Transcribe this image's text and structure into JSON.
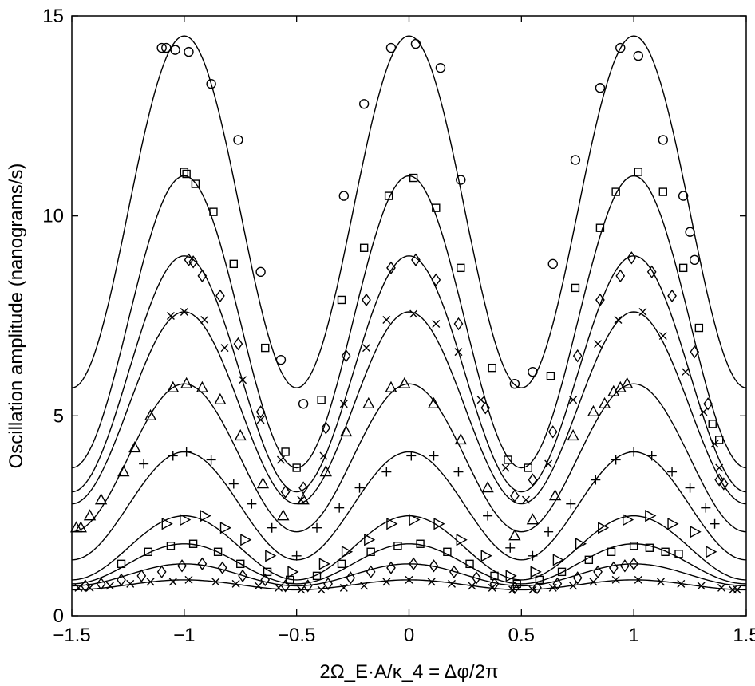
{
  "chart_data": {
    "type": "scatter",
    "xlabel": "2Ω_E·A/κ_4 = Δφ/2π",
    "ylabel": "Oscillation amplitude (nanograms/s)",
    "xlim": [
      -1.5,
      1.5
    ],
    "ylim": [
      0,
      15
    ],
    "xticks": [
      "-1.5",
      "-1",
      "-0.5",
      "0",
      "0.5",
      "1",
      "1.5"
    ],
    "yticks": [
      "0",
      "5",
      "10",
      "15"
    ],
    "grid": false,
    "legend": "none",
    "line_color": "#000000",
    "series": [
      {
        "marker": "circle",
        "curve": {
          "peak": 14.5,
          "trough": 5.7
        },
        "points": [
          [
            -1.1,
            14.2
          ],
          [
            -1.08,
            14.2
          ],
          [
            -1.04,
            14.15
          ],
          [
            -0.98,
            14.1
          ],
          [
            -0.88,
            13.3
          ],
          [
            -0.76,
            11.9
          ],
          [
            -0.66,
            8.6
          ],
          [
            -0.57,
            6.4
          ],
          [
            -0.47,
            5.3
          ],
          [
            -0.29,
            10.5
          ],
          [
            -0.2,
            12.8
          ],
          [
            -0.08,
            14.2
          ],
          [
            0.03,
            14.3
          ],
          [
            0.14,
            13.7
          ],
          [
            0.23,
            10.9
          ],
          [
            0.47,
            5.8
          ],
          [
            0.55,
            6.1
          ],
          [
            0.64,
            8.8
          ],
          [
            0.74,
            11.4
          ],
          [
            0.85,
            13.2
          ],
          [
            0.94,
            14.2
          ],
          [
            1.02,
            14.0
          ],
          [
            1.13,
            11.9
          ],
          [
            1.22,
            10.5
          ],
          [
            1.25,
            9.6
          ],
          [
            1.27,
            8.9
          ]
        ]
      },
      {
        "marker": "square",
        "curve": {
          "peak": 11.0,
          "trough": 3.7
        },
        "points": [
          [
            -1.0,
            11.1
          ],
          [
            -0.99,
            11.05
          ],
          [
            -0.95,
            10.8
          ],
          [
            -0.87,
            10.1
          ],
          [
            -0.78,
            8.8
          ],
          [
            -0.64,
            6.7
          ],
          [
            -0.55,
            4.1
          ],
          [
            -0.5,
            3.7
          ],
          [
            -0.39,
            5.4
          ],
          [
            -0.3,
            7.9
          ],
          [
            -0.2,
            9.2
          ],
          [
            -0.09,
            10.5
          ],
          [
            0.02,
            10.95
          ],
          [
            0.12,
            10.2
          ],
          [
            0.23,
            8.7
          ],
          [
            0.37,
            6.2
          ],
          [
            0.44,
            3.9
          ],
          [
            0.53,
            3.7
          ],
          [
            0.63,
            6.0
          ],
          [
            0.74,
            8.2
          ],
          [
            0.85,
            9.7
          ],
          [
            0.92,
            10.6
          ],
          [
            1.02,
            11.1
          ],
          [
            1.13,
            10.6
          ],
          [
            1.22,
            8.7
          ],
          [
            1.29,
            7.2
          ],
          [
            1.35,
            4.8
          ],
          [
            1.38,
            4.4
          ]
        ]
      },
      {
        "marker": "diamond",
        "curve": {
          "peak": 9.0,
          "trough": 3.1
        },
        "points": [
          [
            -0.98,
            8.9
          ],
          [
            -0.96,
            8.85
          ],
          [
            -0.92,
            8.5
          ],
          [
            -0.84,
            8.0
          ],
          [
            -0.76,
            6.8
          ],
          [
            -0.66,
            5.1
          ],
          [
            -0.55,
            3.1
          ],
          [
            -0.47,
            3.2
          ],
          [
            -0.37,
            4.7
          ],
          [
            -0.28,
            6.5
          ],
          [
            -0.19,
            7.9
          ],
          [
            -0.08,
            8.7
          ],
          [
            0.03,
            8.9
          ],
          [
            0.12,
            8.4
          ],
          [
            0.22,
            7.3
          ],
          [
            0.34,
            5.2
          ],
          [
            0.47,
            3.0
          ],
          [
            0.55,
            3.4
          ],
          [
            0.64,
            4.6
          ],
          [
            0.75,
            6.5
          ],
          [
            0.85,
            7.9
          ],
          [
            0.94,
            8.5
          ],
          [
            0.99,
            8.95
          ],
          [
            1.08,
            8.6
          ],
          [
            1.17,
            8.0
          ],
          [
            1.27,
            6.6
          ],
          [
            1.33,
            5.3
          ],
          [
            1.38,
            3.4
          ],
          [
            1.4,
            3.3
          ]
        ]
      },
      {
        "marker": "x",
        "curve": {
          "peak": 7.6,
          "trough": 2.8
        },
        "points": [
          [
            -1.06,
            7.5
          ],
          [
            -1.0,
            7.6
          ],
          [
            -0.91,
            7.4
          ],
          [
            -0.82,
            6.7
          ],
          [
            -0.74,
            5.9
          ],
          [
            -0.66,
            4.9
          ],
          [
            -0.57,
            3.9
          ],
          [
            -0.48,
            2.9
          ],
          [
            -0.38,
            4.0
          ],
          [
            -0.29,
            5.3
          ],
          [
            -0.19,
            6.7
          ],
          [
            -0.1,
            7.4
          ],
          [
            0.02,
            7.55
          ],
          [
            0.12,
            7.3
          ],
          [
            0.22,
            6.6
          ],
          [
            0.32,
            5.4
          ],
          [
            0.43,
            3.7
          ],
          [
            0.52,
            2.9
          ],
          [
            0.62,
            3.8
          ],
          [
            0.73,
            5.4
          ],
          [
            0.84,
            6.8
          ],
          [
            0.93,
            7.4
          ],
          [
            1.04,
            7.6
          ],
          [
            1.13,
            7.0
          ],
          [
            1.23,
            6.1
          ],
          [
            1.31,
            5.1
          ],
          [
            1.36,
            4.3
          ],
          [
            1.38,
            3.7
          ]
        ]
      },
      {
        "marker": "triangle",
        "curve": {
          "peak": 5.8,
          "trough": 2.1
        },
        "points": [
          [
            -1.48,
            2.2
          ],
          [
            -1.46,
            2.2
          ],
          [
            -1.42,
            2.5
          ],
          [
            -1.37,
            2.9
          ],
          [
            -1.27,
            3.6
          ],
          [
            -1.22,
            4.2
          ],
          [
            -1.15,
            5.0
          ],
          [
            -1.05,
            5.7
          ],
          [
            -0.99,
            5.8
          ],
          [
            -0.92,
            5.7
          ],
          [
            -0.84,
            5.4
          ],
          [
            -0.75,
            4.5
          ],
          [
            -0.65,
            3.3
          ],
          [
            -0.56,
            2.5
          ],
          [
            -0.47,
            2.9
          ],
          [
            -0.37,
            3.6
          ],
          [
            -0.28,
            4.6
          ],
          [
            -0.18,
            5.3
          ],
          [
            -0.08,
            5.7
          ],
          [
            -0.02,
            5.8
          ],
          [
            0.11,
            5.3
          ],
          [
            0.23,
            4.4
          ],
          [
            0.35,
            3.2
          ],
          [
            0.47,
            2.0
          ],
          [
            0.55,
            2.4
          ],
          [
            0.65,
            3.0
          ],
          [
            0.73,
            4.5
          ],
          [
            0.82,
            5.1
          ],
          [
            0.87,
            5.3
          ],
          [
            0.91,
            5.6
          ],
          [
            0.94,
            5.7
          ],
          [
            0.97,
            5.8
          ]
        ]
      },
      {
        "marker": "plus",
        "curve": {
          "peak": 4.1,
          "trough": 1.4
        },
        "points": [
          [
            -1.18,
            3.8
          ],
          [
            -1.05,
            4.0
          ],
          [
            -0.99,
            4.1
          ],
          [
            -0.88,
            3.9
          ],
          [
            -0.78,
            3.3
          ],
          [
            -0.7,
            2.8
          ],
          [
            -0.61,
            2.2
          ],
          [
            -0.5,
            1.5
          ],
          [
            -0.41,
            2.2
          ],
          [
            -0.31,
            2.7
          ],
          [
            -0.22,
            3.2
          ],
          [
            -0.1,
            3.6
          ],
          [
            0.01,
            4.0
          ],
          [
            0.11,
            4.0
          ],
          [
            0.22,
            3.6
          ],
          [
            0.35,
            2.5
          ],
          [
            0.45,
            1.7
          ],
          [
            0.55,
            1.5
          ],
          [
            0.62,
            2.1
          ],
          [
            0.72,
            2.8
          ],
          [
            0.83,
            3.4
          ],
          [
            0.92,
            3.9
          ],
          [
            1.0,
            4.1
          ],
          [
            1.08,
            4.0
          ],
          [
            1.17,
            3.6
          ],
          [
            1.25,
            3.2
          ],
          [
            1.32,
            2.7
          ],
          [
            1.36,
            2.3
          ]
        ]
      },
      {
        "marker": "triangle-right",
        "curve": {
          "peak": 2.5,
          "trough": 0.9
        },
        "points": [
          [
            -1.08,
            2.3
          ],
          [
            -1.0,
            2.4
          ],
          [
            -0.91,
            2.5
          ],
          [
            -0.82,
            2.2
          ],
          [
            -0.73,
            1.9
          ],
          [
            -0.62,
            1.5
          ],
          [
            -0.52,
            1.1
          ],
          [
            -0.38,
            1.3
          ],
          [
            -0.28,
            1.6
          ],
          [
            -0.18,
            1.9
          ],
          [
            -0.08,
            2.3
          ],
          [
            0.02,
            2.4
          ],
          [
            0.13,
            2.3
          ],
          [
            0.23,
            1.9
          ],
          [
            0.34,
            1.5
          ],
          [
            0.45,
            1.0
          ],
          [
            0.56,
            1.1
          ],
          [
            0.66,
            1.4
          ],
          [
            0.76,
            1.8
          ],
          [
            0.86,
            2.2
          ],
          [
            0.97,
            2.4
          ],
          [
            1.07,
            2.5
          ],
          [
            1.17,
            2.3
          ],
          [
            1.27,
            2.1
          ],
          [
            1.34,
            1.6
          ]
        ]
      },
      {
        "marker": "square",
        "curve": {
          "peak": 1.8,
          "trough": 0.8
        },
        "points": [
          [
            -1.28,
            1.3
          ],
          [
            -1.16,
            1.6
          ],
          [
            -1.06,
            1.75
          ],
          [
            -0.96,
            1.8
          ],
          [
            -0.85,
            1.6
          ],
          [
            -0.75,
            1.3
          ],
          [
            -0.63,
            1.1
          ],
          [
            -0.53,
            0.9
          ],
          [
            -0.41,
            1.0
          ],
          [
            -0.3,
            1.3
          ],
          [
            -0.17,
            1.6
          ],
          [
            -0.05,
            1.75
          ],
          [
            0.05,
            1.8
          ],
          [
            0.17,
            1.6
          ],
          [
            0.27,
            1.3
          ],
          [
            0.38,
            1.0
          ],
          [
            0.48,
            0.8
          ],
          [
            0.58,
            0.9
          ],
          [
            0.68,
            1.1
          ],
          [
            0.8,
            1.4
          ],
          [
            0.9,
            1.6
          ],
          [
            1.0,
            1.75
          ],
          [
            1.07,
            1.7
          ],
          [
            1.14,
            1.6
          ],
          [
            1.2,
            1.55
          ]
        ]
      },
      {
        "marker": "diamond",
        "curve": {
          "peak": 1.3,
          "trough": 0.75
        },
        "points": [
          [
            -1.44,
            0.75
          ],
          [
            -1.37,
            0.8
          ],
          [
            -1.28,
            0.9
          ],
          [
            -1.19,
            1.0
          ],
          [
            -1.1,
            1.1
          ],
          [
            -1.01,
            1.25
          ],
          [
            -0.92,
            1.3
          ],
          [
            -0.83,
            1.2
          ],
          [
            -0.74,
            1.0
          ],
          [
            -0.64,
            0.9
          ],
          [
            -0.55,
            0.75
          ],
          [
            -0.45,
            0.75
          ],
          [
            -0.36,
            0.8
          ],
          [
            -0.26,
            0.95
          ],
          [
            -0.17,
            1.1
          ],
          [
            -0.08,
            1.2
          ],
          [
            0.02,
            1.3
          ],
          [
            0.11,
            1.25
          ],
          [
            0.2,
            1.1
          ],
          [
            0.3,
            0.95
          ],
          [
            0.38,
            0.8
          ],
          [
            0.47,
            0.7
          ],
          [
            0.57,
            0.7
          ],
          [
            0.66,
            0.8
          ],
          [
            0.75,
            0.95
          ],
          [
            0.84,
            1.1
          ],
          [
            0.91,
            1.2
          ],
          [
            0.96,
            1.25
          ],
          [
            1.0,
            1.3
          ]
        ]
      },
      {
        "marker": "x",
        "curve": {
          "peak": 0.9,
          "trough": 0.65
        },
        "points": [
          [
            -1.47,
            0.7
          ],
          [
            -1.42,
            0.7
          ],
          [
            -1.33,
            0.75
          ],
          [
            -1.24,
            0.8
          ],
          [
            -1.15,
            0.85
          ],
          [
            -1.05,
            0.85
          ],
          [
            -0.98,
            0.9
          ],
          [
            -0.86,
            0.85
          ],
          [
            -0.77,
            0.8
          ],
          [
            -0.67,
            0.75
          ],
          [
            -0.58,
            0.7
          ],
          [
            -0.48,
            0.65
          ],
          [
            -0.39,
            0.65
          ],
          [
            -0.29,
            0.7
          ],
          [
            -0.2,
            0.75
          ],
          [
            -0.1,
            0.85
          ],
          [
            0.0,
            0.9
          ],
          [
            0.1,
            0.85
          ],
          [
            0.19,
            0.8
          ],
          [
            0.28,
            0.75
          ],
          [
            0.37,
            0.7
          ],
          [
            0.46,
            0.65
          ],
          [
            0.55,
            0.65
          ],
          [
            0.64,
            0.7
          ],
          [
            0.73,
            0.75
          ],
          [
            0.82,
            0.85
          ],
          [
            0.92,
            0.9
          ],
          [
            1.02,
            0.9
          ],
          [
            1.12,
            0.85
          ],
          [
            1.21,
            0.8
          ],
          [
            1.3,
            0.75
          ],
          [
            1.39,
            0.7
          ],
          [
            1.44,
            0.65
          ],
          [
            1.46,
            0.65
          ]
        ]
      }
    ]
  }
}
